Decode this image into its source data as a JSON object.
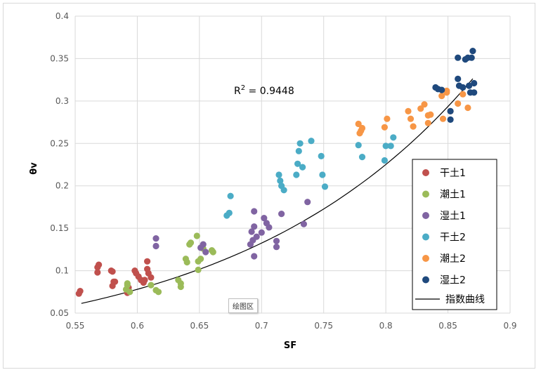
{
  "chart_data": {
    "type": "scatter",
    "xlabel": "SF",
    "ylabel": "θv",
    "xlim": [
      0.55,
      0.9
    ],
    "ylim": [
      0.05,
      0.4
    ],
    "x_ticks": [
      "0.55",
      "0.6",
      "0.65",
      "0.7",
      "0.75",
      "0.8",
      "0.85",
      "0.9"
    ],
    "y_ticks": [
      "0.05",
      "0.1",
      "0.15",
      "0.2",
      "0.25",
      "0.3",
      "0.35",
      "0.4"
    ],
    "grid": "horizontal and vertical",
    "legend_position": "right",
    "annotation": {
      "text": "R",
      "sup": "2",
      "rest": " = 0.9448"
    },
    "series": [
      {
        "name": "干土1",
        "color": "#c0504d",
        "points": [
          [
            0.553,
            0.073
          ],
          [
            0.554,
            0.076
          ],
          [
            0.568,
            0.098
          ],
          [
            0.568,
            0.104
          ],
          [
            0.569,
            0.107
          ],
          [
            0.579,
            0.1
          ],
          [
            0.58,
            0.099
          ],
          [
            0.58,
            0.082
          ],
          [
            0.581,
            0.087
          ],
          [
            0.582,
            0.087
          ],
          [
            0.592,
            0.074
          ],
          [
            0.593,
            0.08
          ],
          [
            0.598,
            0.1
          ],
          [
            0.599,
            0.097
          ],
          [
            0.601,
            0.093
          ],
          [
            0.603,
            0.089
          ],
          [
            0.605,
            0.086
          ],
          [
            0.606,
            0.089
          ],
          [
            0.608,
            0.102
          ],
          [
            0.608,
            0.111
          ],
          [
            0.609,
            0.097
          ],
          [
            0.611,
            0.092
          ]
        ]
      },
      {
        "name": "潮土1",
        "color": "#9bbb59",
        "points": [
          [
            0.591,
            0.078
          ],
          [
            0.592,
            0.083
          ],
          [
            0.592,
            0.085
          ],
          [
            0.594,
            0.075
          ],
          [
            0.611,
            0.083
          ],
          [
            0.615,
            0.077
          ],
          [
            0.617,
            0.075
          ],
          [
            0.633,
            0.089
          ],
          [
            0.635,
            0.081
          ],
          [
            0.635,
            0.085
          ],
          [
            0.639,
            0.114
          ],
          [
            0.64,
            0.11
          ],
          [
            0.642,
            0.131
          ],
          [
            0.643,
            0.133
          ],
          [
            0.648,
            0.141
          ],
          [
            0.649,
            0.101
          ],
          [
            0.649,
            0.111
          ],
          [
            0.651,
            0.114
          ],
          [
            0.653,
            0.126
          ],
          [
            0.66,
            0.124
          ],
          [
            0.661,
            0.122
          ]
        ]
      },
      {
        "name": "湿土1",
        "color": "#8064a2",
        "points": [
          [
            0.615,
            0.138
          ],
          [
            0.615,
            0.129
          ],
          [
            0.651,
            0.127
          ],
          [
            0.653,
            0.131
          ],
          [
            0.655,
            0.122
          ],
          [
            0.691,
            0.131
          ],
          [
            0.692,
            0.146
          ],
          [
            0.693,
            0.136
          ],
          [
            0.694,
            0.152
          ],
          [
            0.694,
            0.17
          ],
          [
            0.694,
            0.117
          ],
          [
            0.696,
            0.14
          ],
          [
            0.7,
            0.145
          ],
          [
            0.702,
            0.162
          ],
          [
            0.704,
            0.156
          ],
          [
            0.706,
            0.151
          ],
          [
            0.712,
            0.128
          ],
          [
            0.712,
            0.135
          ],
          [
            0.716,
            0.167
          ],
          [
            0.734,
            0.155
          ],
          [
            0.737,
            0.181
          ]
        ]
      },
      {
        "name": "干土2",
        "color": "#4bacc6",
        "points": [
          [
            0.672,
            0.165
          ],
          [
            0.674,
            0.168
          ],
          [
            0.675,
            0.188
          ],
          [
            0.714,
            0.213
          ],
          [
            0.715,
            0.206
          ],
          [
            0.716,
            0.2
          ],
          [
            0.718,
            0.195
          ],
          [
            0.728,
            0.213
          ],
          [
            0.729,
            0.226
          ],
          [
            0.73,
            0.241
          ],
          [
            0.731,
            0.25
          ],
          [
            0.733,
            0.222
          ],
          [
            0.74,
            0.253
          ],
          [
            0.748,
            0.235
          ],
          [
            0.749,
            0.213
          ],
          [
            0.751,
            0.199
          ],
          [
            0.778,
            0.248
          ],
          [
            0.781,
            0.234
          ],
          [
            0.799,
            0.23
          ],
          [
            0.8,
            0.247
          ],
          [
            0.804,
            0.247
          ],
          [
            0.806,
            0.257
          ]
        ]
      },
      {
        "name": "潮土2",
        "color": "#f79646",
        "points": [
          [
            0.778,
            0.273
          ],
          [
            0.779,
            0.262
          ],
          [
            0.78,
            0.265
          ],
          [
            0.781,
            0.268
          ],
          [
            0.799,
            0.269
          ],
          [
            0.801,
            0.279
          ],
          [
            0.818,
            0.288
          ],
          [
            0.82,
            0.279
          ],
          [
            0.822,
            0.27
          ],
          [
            0.828,
            0.291
          ],
          [
            0.831,
            0.296
          ],
          [
            0.834,
            0.283
          ],
          [
            0.836,
            0.284
          ],
          [
            0.834,
            0.274
          ],
          [
            0.845,
            0.306
          ],
          [
            0.846,
            0.279
          ],
          [
            0.849,
            0.312
          ],
          [
            0.849,
            0.31
          ],
          [
            0.852,
            0.288
          ],
          [
            0.858,
            0.297
          ],
          [
            0.862,
            0.308
          ],
          [
            0.866,
            0.292
          ]
        ]
      },
      {
        "name": "湿土2",
        "color": "#1f497d",
        "points": [
          [
            0.84,
            0.316
          ],
          [
            0.842,
            0.314
          ],
          [
            0.845,
            0.313
          ],
          [
            0.852,
            0.288
          ],
          [
            0.852,
            0.278
          ],
          [
            0.858,
            0.351
          ],
          [
            0.858,
            0.326
          ],
          [
            0.859,
            0.318
          ],
          [
            0.862,
            0.316
          ],
          [
            0.864,
            0.349
          ],
          [
            0.866,
            0.351
          ],
          [
            0.867,
            0.318
          ],
          [
            0.868,
            0.31
          ],
          [
            0.869,
            0.351
          ],
          [
            0.87,
            0.359
          ],
          [
            0.871,
            0.31
          ],
          [
            0.871,
            0.321
          ]
        ]
      }
    ],
    "trendline": {
      "name": "指数曲线",
      "type": "exponential",
      "a": 0.003244,
      "b": 5.3,
      "x_range": [
        0.555,
        0.87
      ]
    }
  },
  "overlay": {
    "tooltip": "绘图区"
  }
}
